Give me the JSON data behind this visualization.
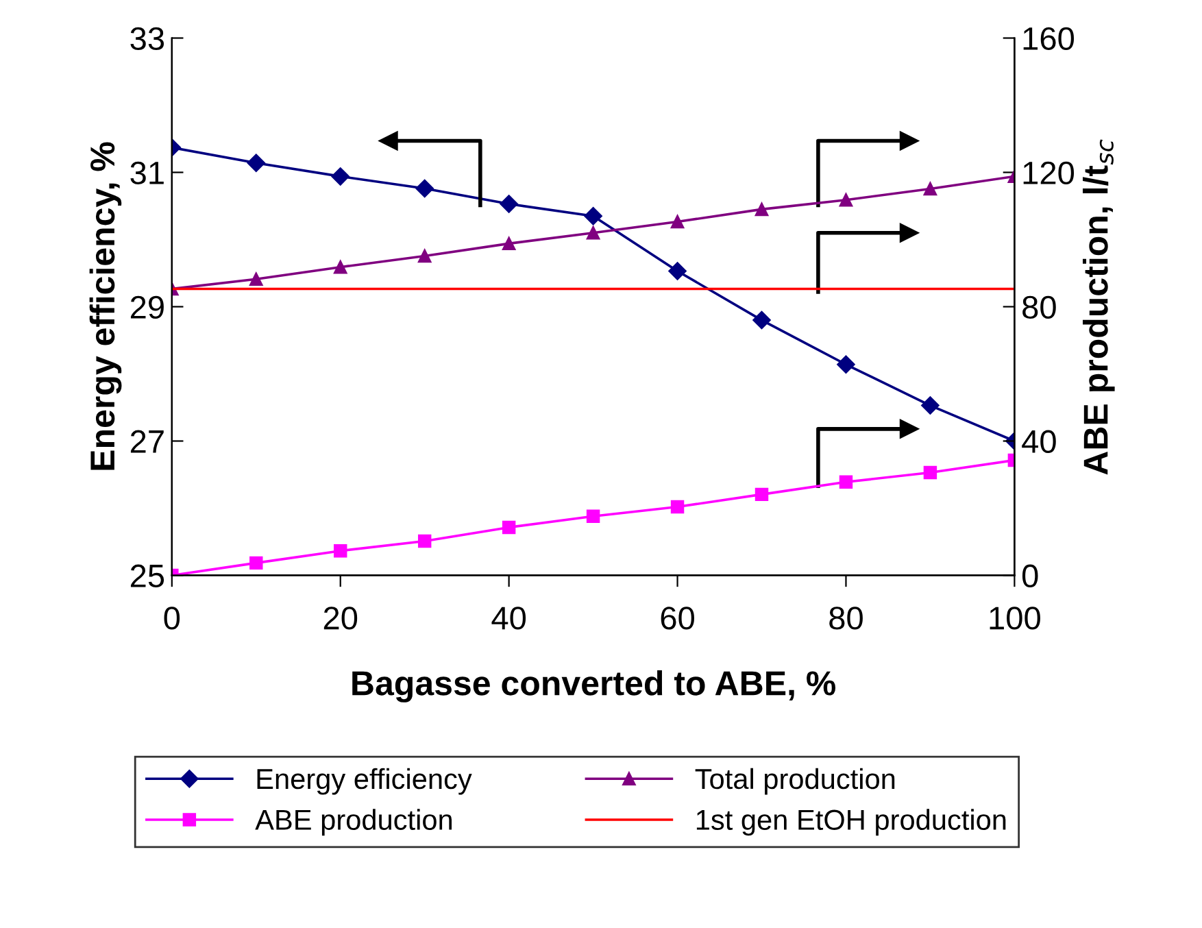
{
  "chart_data": {
    "type": "line",
    "xlabel": "Bagasse converted to ABE, %",
    "ylabel": "Energy efficiency, %",
    "y2label": "ABE production, l/t$_{sc}$",
    "x": [
      0,
      10,
      20,
      30,
      40,
      50,
      60,
      70,
      80,
      90,
      100
    ],
    "series": [
      {
        "name": "Energy efficiency",
        "color": "#000080",
        "marker": "diamond",
        "values": [
          31.37,
          31.14,
          30.94,
          30.76,
          30.53,
          30.35,
          29.53,
          28.8,
          28.14,
          27.53,
          27.0
        ]
      },
      {
        "name": "ABE production",
        "color": "#ff00ff",
        "marker": "square",
        "axis": "y2",
        "values": [
          0,
          3.7,
          7.3,
          10.2,
          14.3,
          17.6,
          20.4,
          24.1,
          27.8,
          30.6,
          34.3
        ]
      },
      {
        "name": "Total production",
        "color": "#800080",
        "marker": "triangle",
        "axis": "y2",
        "values": [
          85.3,
          88.2,
          91.8,
          95.1,
          98.8,
          102,
          105.3,
          109,
          111.8,
          115.1,
          118.8
        ]
      },
      {
        "name": "1st gen EtOH production",
        "color": "#ff0000",
        "marker": "none",
        "axis": "y2",
        "values": [
          85.3,
          85.3,
          85.3,
          85.3,
          85.3,
          85.3,
          85.3,
          85.3,
          85.3,
          85.3,
          85.3
        ]
      }
    ],
    "xlim": [
      0,
      100
    ],
    "xticks": [
      0,
      20,
      40,
      60,
      80,
      100
    ],
    "ylim": [
      25,
      33
    ],
    "yticks": [
      25,
      27,
      29,
      31,
      33
    ],
    "y2lim": [
      0,
      160
    ],
    "y2ticks": [
      0,
      40,
      80,
      120,
      160
    ],
    "legend": "bottom"
  }
}
